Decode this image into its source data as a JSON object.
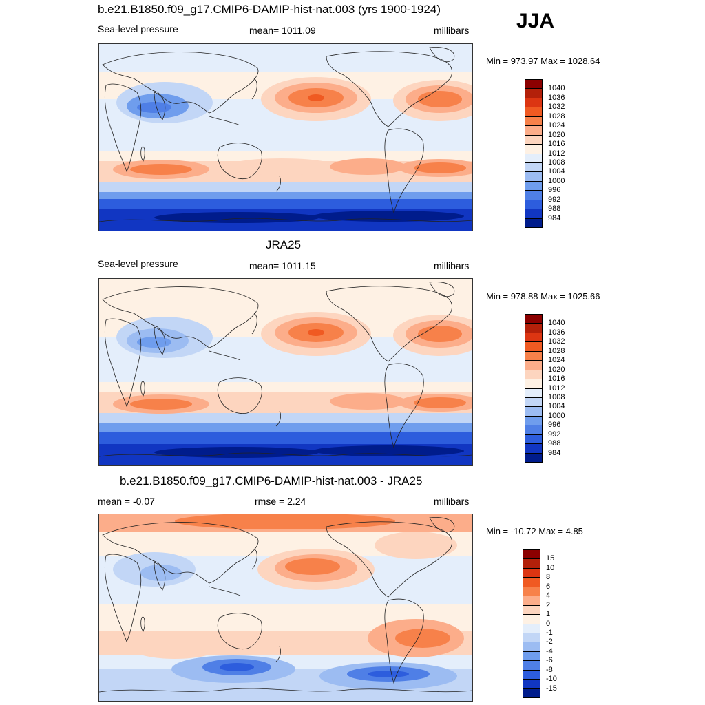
{
  "season": "JJA",
  "panels": [
    {
      "title": "b.e21.B1850.f09_g17.CMIP6-DAMIP-hist-nat.003 (yrs 1900-1924)",
      "left": "Sea-level pressure",
      "center": "mean= 1011.09",
      "right": "millibars",
      "minmax": "Min = 973.97 Max = 1028.64"
    },
    {
      "title": "JRA25",
      "left": "Sea-level pressure",
      "center": "mean= 1011.15",
      "right": "millibars",
      "minmax": "Min = 978.88 Max = 1025.66"
    },
    {
      "title": "b.e21.B1850.f09_g17.CMIP6-DAMIP-hist-nat.003 - JRA25",
      "left": "mean =  -0.07",
      "center": "rmse =   2.24",
      "right": "millibars",
      "minmax": "Min = -10.72 Max =   4.85"
    }
  ],
  "chart_data": [
    {
      "type": "heatmap",
      "title": "b.e21.B1850.f09_g17.CMIP6-DAMIP-hist-nat.003 (yrs 1900-1924)",
      "variable": "Sea-level pressure",
      "units": "millibars",
      "mean": 1011.09,
      "min": 973.97,
      "max": 1028.64,
      "colorbar_levels": [
        "1040",
        "1036",
        "1032",
        "1028",
        "1024",
        "1020",
        "1016",
        "1012",
        "1008",
        "1004",
        "1000",
        "996",
        "992",
        "988",
        "984"
      ],
      "colorbar_colors": [
        "#8b0000",
        "#b3200a",
        "#dc3512",
        "#f05a22",
        "#f7814a",
        "#fcad8a",
        "#fdd5bf",
        "#fef1e4",
        "#e4eefb",
        "#c2d6f6",
        "#9cbcf2",
        "#6f9ded",
        "#4f7fe6",
        "#2d5ddd",
        "#1136c2",
        "#001c8c"
      ]
    },
    {
      "type": "heatmap",
      "title": "JRA25",
      "variable": "Sea-level pressure",
      "units": "millibars",
      "mean": 1011.15,
      "min": 978.88,
      "max": 1025.66,
      "colorbar_levels": [
        "1040",
        "1036",
        "1032",
        "1028",
        "1024",
        "1020",
        "1016",
        "1012",
        "1008",
        "1004",
        "1000",
        "996",
        "992",
        "988",
        "984"
      ],
      "colorbar_colors": [
        "#8b0000",
        "#b3200a",
        "#dc3512",
        "#f05a22",
        "#f7814a",
        "#fcad8a",
        "#fdd5bf",
        "#fef1e4",
        "#e4eefb",
        "#c2d6f6",
        "#9cbcf2",
        "#6f9ded",
        "#4f7fe6",
        "#2d5ddd",
        "#1136c2",
        "#001c8c"
      ]
    },
    {
      "type": "heatmap",
      "title": "b.e21.B1850.f09_g17.CMIP6-DAMIP-hist-nat.003 - JRA25",
      "units": "millibars",
      "mean": -0.07,
      "rmse": 2.24,
      "min": -10.72,
      "max": 4.85,
      "colorbar_levels": [
        "15",
        "10",
        "8",
        "6",
        "4",
        "2",
        "1",
        "0",
        "-1",
        "-2",
        "-4",
        "-6",
        "-8",
        "-10",
        "-15"
      ],
      "colorbar_colors": [
        "#8b0000",
        "#b3200a",
        "#dc3512",
        "#f05a22",
        "#f7814a",
        "#fcad8a",
        "#fdd5bf",
        "#fef1e4",
        "#e4eefb",
        "#c2d6f6",
        "#9cbcf2",
        "#6f9ded",
        "#4f7fe6",
        "#2d5ddd",
        "#1136c2",
        "#001c8c"
      ]
    }
  ]
}
